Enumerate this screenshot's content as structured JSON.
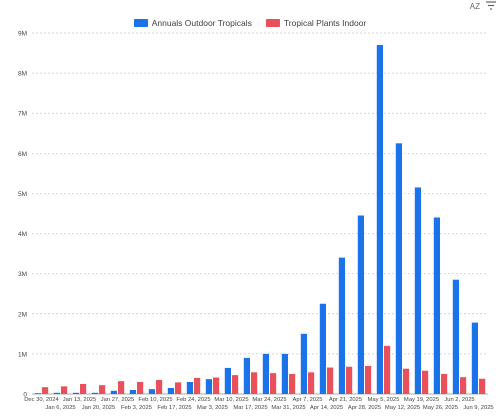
{
  "toolbar": {
    "sort_label": "AZ",
    "filter_icon": "filter-icon"
  },
  "colors": {
    "series1": "#1a73e8",
    "series2": "#e8505b",
    "grid": "#c8c8c8",
    "axis": "#9aa0a6",
    "text": "#444444"
  },
  "chart_data": {
    "type": "bar",
    "title": "",
    "xlabel": "",
    "ylabel": "",
    "ylim": [
      0,
      9000000
    ],
    "yticks": [
      0,
      1000000,
      2000000,
      3000000,
      4000000,
      5000000,
      6000000,
      7000000,
      8000000,
      9000000
    ],
    "ytick_labels": [
      "0",
      "1M",
      "2M",
      "3M",
      "4M",
      "5M",
      "6M",
      "7M",
      "8M",
      "9M"
    ],
    "grid": true,
    "legend_position": "top-center",
    "categories": [
      "Dec 30, 2024",
      "Jan 6, 2025",
      "Jan 13, 2025",
      "Jan 20, 2025",
      "Jan 27, 2025",
      "Feb 3, 2025",
      "Feb 10, 2025",
      "Feb 17, 2025",
      "Feb 24, 2025",
      "Mar 3, 2025",
      "Mar 10, 2025",
      "Mar 17, 2025",
      "Mar 24, 2025",
      "Mar 31, 2025",
      "Apr 7, 2025",
      "Apr 14, 2025",
      "Apr 21, 2025",
      "Apr 28, 2025",
      "May 5, 2025",
      "May 12, 2025",
      "May 19, 2025",
      "May 26, 2025",
      "Jun 2, 2025",
      "Jun 9, 2025"
    ],
    "series": [
      {
        "name": "Annuals Outdoor Tropicals",
        "values": [
          20000,
          30000,
          30000,
          30000,
          80000,
          100000,
          120000,
          150000,
          300000,
          370000,
          650000,
          900000,
          1000000,
          1000000,
          1500000,
          2250000,
          3400000,
          4450000,
          8700000,
          6250000,
          5150000,
          4400000,
          2850000,
          1780000
        ]
      },
      {
        "name": "Tropical Plants Indoor",
        "values": [
          170000,
          190000,
          250000,
          220000,
          320000,
          300000,
          350000,
          290000,
          400000,
          410000,
          470000,
          540000,
          520000,
          500000,
          540000,
          660000,
          680000,
          700000,
          1200000,
          630000,
          580000,
          500000,
          420000,
          380000
        ]
      }
    ]
  }
}
